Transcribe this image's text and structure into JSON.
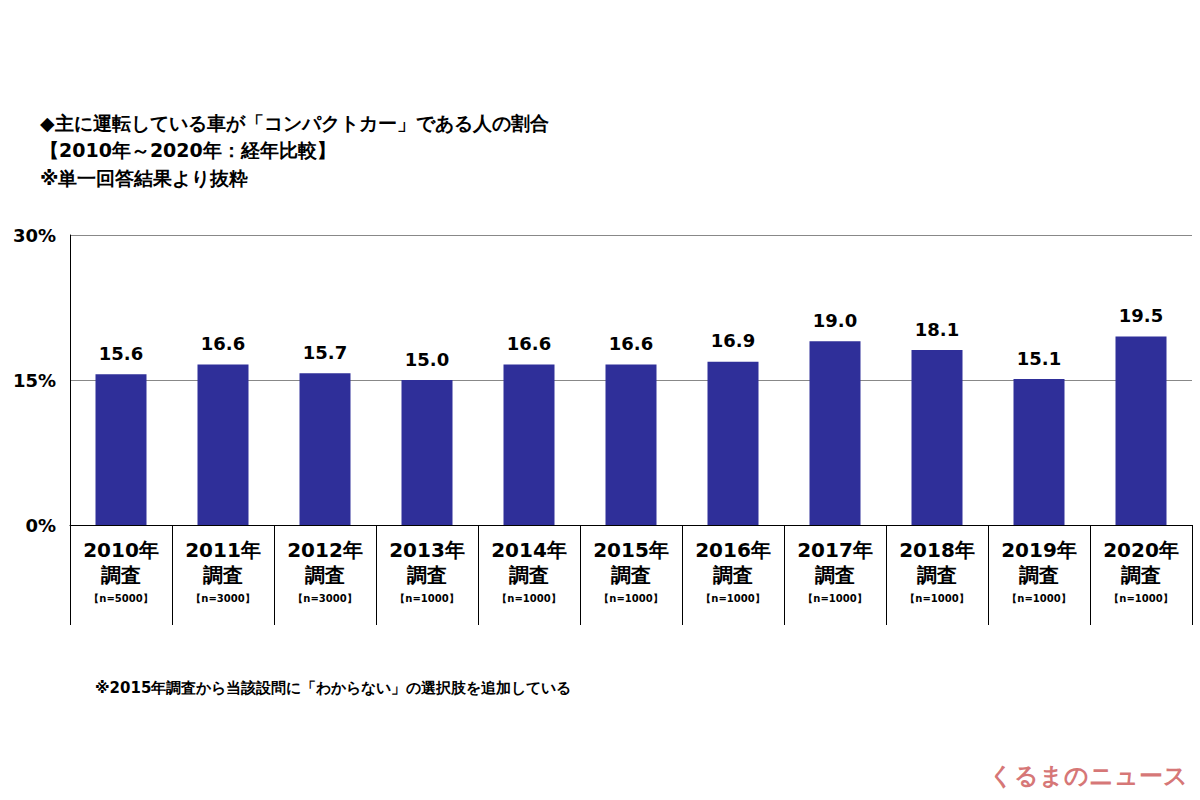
{
  "chart_data": {
    "type": "bar",
    "title": "◆主に運転している車が「コンパクトカー」である人の割合",
    "subtitle": "【2010年～2020年：経年比較】\n※単一回答結果より抜粋",
    "categories": [
      "2010年\n調査\n【n=5000】",
      "2011年\n調査\n【n=3000】",
      "2012年\n調査\n【n=3000】",
      "2013年\n調査\n【n=1000】",
      "2014年\n調査\n【n=1000】",
      "2015年\n調査\n【n=1000】",
      "2016年\n調査\n【n=1000】",
      "2017年\n調査\n【n=1000】",
      "2018年\n調査\n【n=1000】",
      "2019年\n調査\n【n=1000】",
      "2020年\n調査\n【n=1000】"
    ],
    "values": [
      15.6,
      16.6,
      15.7,
      15.0,
      16.6,
      16.6,
      16.9,
      19.0,
      18.1,
      15.1,
      19.5
    ],
    "value_labels": [
      "15.6",
      "16.6",
      "15.7",
      "15.0",
      "16.6",
      "16.6",
      "16.9",
      "19.0",
      "18.1",
      "15.1",
      "19.5"
    ],
    "color": "#2f2f99",
    "ylim": [
      0,
      30
    ],
    "yticks": [
      {
        "value": 0,
        "label": "0%"
      },
      {
        "value": 15,
        "label": "15%"
      },
      {
        "value": 30,
        "label": "30%"
      }
    ],
    "grid": true,
    "data_labels": true,
    "annotations": [
      "※2015年調査から当該設問に「わからない」の選択肢を追加している"
    ],
    "watermark": "くるまのニュース"
  }
}
